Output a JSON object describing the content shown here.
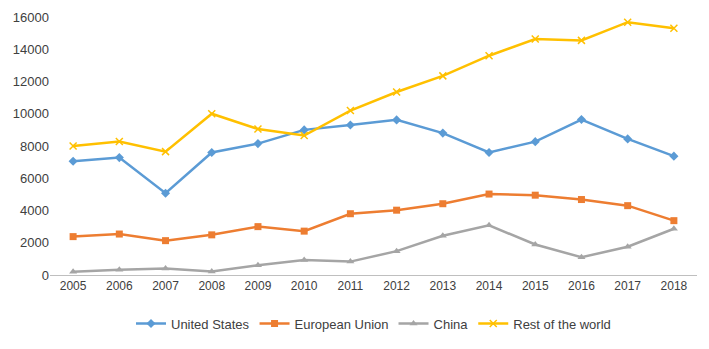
{
  "chart_data": {
    "type": "line",
    "categories": [
      "2005",
      "2006",
      "2007",
      "2008",
      "2009",
      "2010",
      "2011",
      "2012",
      "2013",
      "2014",
      "2015",
      "2016",
      "2017",
      "2018"
    ],
    "series": [
      {
        "name": "United States",
        "color": "#5B9BD5",
        "marker": "diamond",
        "values": [
          7050,
          7280,
          5070,
          7600,
          8150,
          9000,
          9300,
          9620,
          8800,
          7600,
          8270,
          9640,
          8440,
          7370
        ]
      },
      {
        "name": "European Union",
        "color": "#ED7D31",
        "marker": "square",
        "values": [
          2380,
          2540,
          2130,
          2490,
          3000,
          2720,
          3800,
          4020,
          4420,
          5020,
          4950,
          4680,
          4300,
          3370
        ]
      },
      {
        "name": "China",
        "color": "#A5A5A5",
        "marker": "triangle",
        "values": [
          200,
          330,
          400,
          220,
          600,
          930,
          830,
          1480,
          2430,
          3080,
          1890,
          1100,
          1750,
          2870
        ]
      },
      {
        "name": "Rest of the world",
        "color": "#FFC000",
        "marker": "x",
        "values": [
          8000,
          8280,
          7650,
          10000,
          9050,
          8650,
          10200,
          11350,
          12350,
          13600,
          14630,
          14550,
          15680,
          15300
        ]
      }
    ],
    "ylim": [
      0,
      16000
    ],
    "yticks": [
      0,
      2000,
      4000,
      6000,
      8000,
      10000,
      12000,
      14000,
      16000
    ],
    "grid": false,
    "legend": "bottom"
  }
}
